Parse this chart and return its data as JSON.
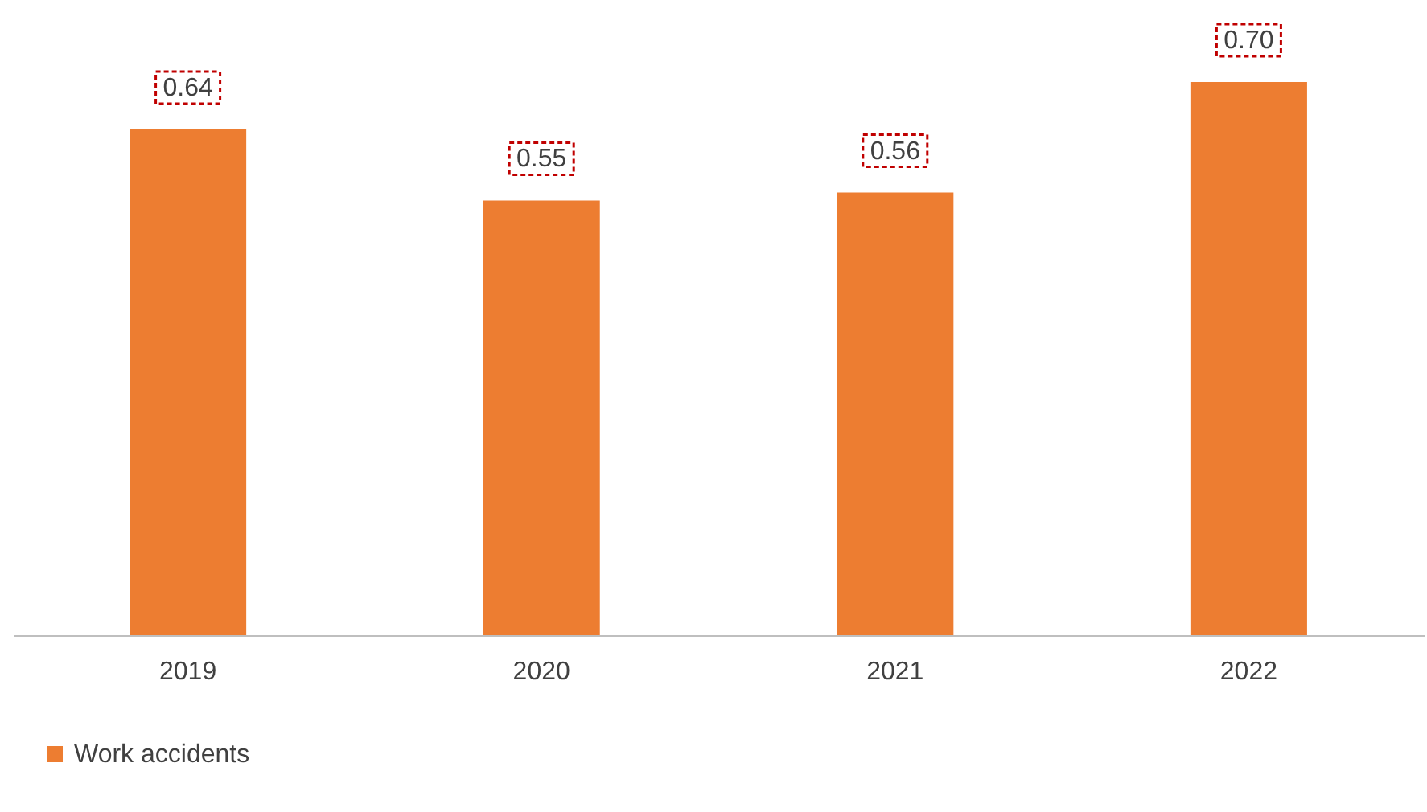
{
  "chart_data": {
    "type": "bar",
    "categories": [
      "2019",
      "2020",
      "2021",
      "2022"
    ],
    "series": [
      {
        "name": "Work accidents",
        "color": "#ed7d31",
        "values": [
          0.64,
          0.55,
          0.56,
          0.7
        ],
        "value_labels": [
          "0.64",
          "0.55",
          "0.56",
          "0.70"
        ]
      }
    ],
    "tick_labels": "x",
    "legend": "bottom",
    "grid": false
  }
}
